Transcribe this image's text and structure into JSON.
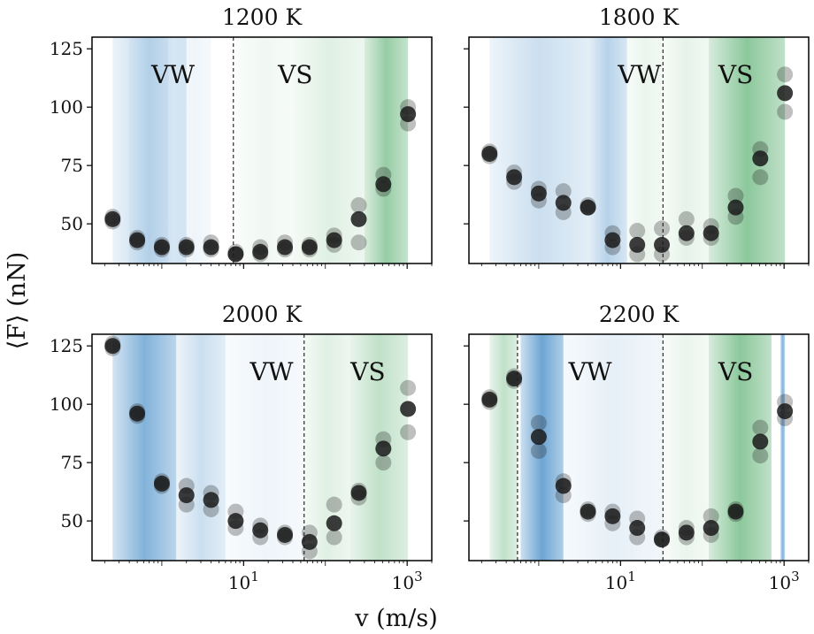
{
  "figure": {
    "ylabel": "⟨F⟩ (nN)",
    "xlabel": "v (m/s)",
    "colors": {
      "points": "#1a1a1a",
      "vw_band": "#2f7fc1",
      "vs_band": "#2e9a4a",
      "divider": "#000000"
    }
  },
  "chart_data": [
    {
      "type": "scatter",
      "title": "1200 K",
      "region_labels": [
        "VW",
        "VS"
      ],
      "divider_x": [
        7.5
      ],
      "xscale": "log",
      "xlim": [
        0.14,
        2000
      ],
      "ylim": [
        33,
        130
      ],
      "xticks": [
        10,
        1000
      ],
      "xtick_labels": [
        "10^1",
        "10^3"
      ],
      "yticks": [
        50,
        75,
        100,
        125
      ],
      "ytick_labels": [
        "50",
        "75",
        "100",
        "125"
      ],
      "show_xtick_labels": false,
      "show_ytick_labels": true,
      "x": [
        0.25,
        0.5,
        1,
        2,
        4,
        8,
        16,
        32,
        64,
        128,
        256,
        512,
        1024
      ],
      "y": [
        52,
        43,
        40,
        40,
        40,
        37,
        38,
        40,
        40,
        43,
        52,
        67,
        97
      ],
      "spread": [
        [
          51,
          53
        ],
        [
          42,
          44
        ],
        [
          39,
          41
        ],
        [
          39,
          41
        ],
        [
          39,
          42
        ],
        [
          37,
          38
        ],
        [
          37,
          40
        ],
        [
          39,
          42
        ],
        [
          39,
          41
        ],
        [
          41,
          45
        ],
        [
          42,
          58
        ],
        [
          65,
          71
        ],
        [
          93,
          100
        ]
      ],
      "bands": [
        [
          0.25,
          2,
          "vw",
          0.28
        ],
        [
          0.4,
          1.2,
          "vw",
          0.12
        ],
        [
          1.5,
          4,
          "vw",
          0.08
        ],
        [
          8,
          40,
          "vs",
          0.07
        ],
        [
          40,
          300,
          "vs",
          0.15
        ],
        [
          300,
          1024,
          "vs",
          0.5
        ]
      ]
    },
    {
      "type": "scatter",
      "title": "1800 K",
      "region_labels": [
        "VW",
        "VS"
      ],
      "divider_x": [
        33
      ],
      "xscale": "log",
      "xlim": [
        0.14,
        2000
      ],
      "ylim": [
        33,
        130
      ],
      "xticks": [
        10,
        1000
      ],
      "xtick_labels": [
        "10^1",
        "10^3"
      ],
      "yticks": [
        50,
        75,
        100,
        125
      ],
      "ytick_labels": [
        "50",
        "75",
        "100",
        "125"
      ],
      "show_xtick_labels": false,
      "show_ytick_labels": false,
      "x": [
        0.25,
        0.5,
        1,
        2,
        4,
        8,
        16,
        32,
        64,
        128,
        256,
        512,
        1024
      ],
      "y": [
        80,
        70,
        63,
        59,
        57,
        43,
        41,
        41,
        46,
        46,
        57,
        78,
        106
      ],
      "spread": [
        [
          79,
          81
        ],
        [
          68,
          72
        ],
        [
          60,
          65
        ],
        [
          55,
          64
        ],
        [
          57,
          58
        ],
        [
          40,
          46
        ],
        [
          37,
          47
        ],
        [
          37,
          48
        ],
        [
          44,
          52
        ],
        [
          44,
          49
        ],
        [
          53,
          62
        ],
        [
          70,
          82
        ],
        [
          98,
          114
        ]
      ],
      "bands": [
        [
          0.25,
          4,
          "vw",
          0.25
        ],
        [
          4,
          12,
          "vw",
          0.35
        ],
        [
          12,
          33,
          "vs",
          0.1
        ],
        [
          33,
          120,
          "vs",
          0.12
        ],
        [
          120,
          1024,
          "vs",
          0.55
        ]
      ]
    },
    {
      "type": "scatter",
      "title": "2000 K",
      "region_labels": [
        "VW",
        "VS"
      ],
      "divider_x": [
        55
      ],
      "xscale": "log",
      "xlim": [
        0.14,
        2000
      ],
      "ylim": [
        33,
        130
      ],
      "xticks": [
        10,
        1000
      ],
      "xtick_labels": [
        "10^1",
        "10^3"
      ],
      "yticks": [
        50,
        75,
        100,
        125
      ],
      "ytick_labels": [
        "50",
        "75",
        "100",
        "125"
      ],
      "show_xtick_labels": true,
      "show_ytick_labels": true,
      "x": [
        0.25,
        0.5,
        1,
        2,
        4,
        8,
        16,
        32,
        64,
        128,
        256,
        512,
        1024
      ],
      "y": [
        125,
        96,
        66,
        61,
        59,
        50,
        46,
        44,
        41,
        49,
        62,
        81,
        98
      ],
      "spread": [
        [
          124,
          126
        ],
        [
          95,
          97
        ],
        [
          65,
          67
        ],
        [
          57,
          65
        ],
        [
          55,
          62
        ],
        [
          47,
          54
        ],
        [
          43,
          48
        ],
        [
          43,
          45
        ],
        [
          37,
          45
        ],
        [
          43,
          57
        ],
        [
          60,
          63
        ],
        [
          75,
          85
        ],
        [
          88,
          107
        ]
      ],
      "bands": [
        [
          0.25,
          1.5,
          "vw",
          0.6
        ],
        [
          1.5,
          6,
          "vw",
          0.25
        ],
        [
          6,
          55,
          "vw",
          0.08
        ],
        [
          55,
          200,
          "vs",
          0.15
        ],
        [
          200,
          1024,
          "vs",
          0.3
        ]
      ]
    },
    {
      "type": "scatter",
      "title": "2200 K",
      "region_labels": [
        "VW",
        "VS"
      ],
      "divider_x": [
        0.55,
        33
      ],
      "xscale": "log",
      "xlim": [
        0.14,
        2000
      ],
      "ylim": [
        33,
        130
      ],
      "xticks": [
        10,
        1000
      ],
      "xtick_labels": [
        "10^1",
        "10^3"
      ],
      "yticks": [
        50,
        75,
        100,
        125
      ],
      "ytick_labels": [
        "50",
        "75",
        "100",
        "125"
      ],
      "show_xtick_labels": true,
      "show_ytick_labels": false,
      "x": [
        0.25,
        0.5,
        1,
        2,
        4,
        8,
        16,
        32,
        64,
        128,
        256,
        512,
        1024
      ],
      "y": [
        102,
        111,
        86,
        65,
        54,
        52,
        47,
        42,
        45,
        47,
        54,
        84,
        97
      ],
      "spread": [
        [
          101,
          103
        ],
        [
          110,
          112
        ],
        [
          80,
          92
        ],
        [
          61,
          67
        ],
        [
          53,
          55
        ],
        [
          49,
          54
        ],
        [
          43,
          51
        ],
        [
          42,
          43
        ],
        [
          43,
          47
        ],
        [
          44,
          52
        ],
        [
          53,
          55
        ],
        [
          78,
          90
        ],
        [
          94,
          101
        ]
      ],
      "bands": [
        [
          0.25,
          0.55,
          "vs",
          0.3
        ],
        [
          0.6,
          2,
          "vw",
          0.7
        ],
        [
          2,
          33,
          "vw",
          0.12
        ],
        [
          33,
          120,
          "vs",
          0.1
        ],
        [
          120,
          700,
          "vs",
          0.55
        ],
        [
          900,
          1024,
          "vw",
          0.6
        ]
      ]
    }
  ]
}
